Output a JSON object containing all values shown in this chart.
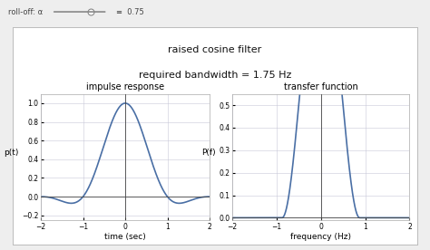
{
  "title_line1": "raised cosine filter",
  "title_line2": "required bandwidth = 1.75 Hz",
  "subplot1_title": "impulse response",
  "subplot2_title": "transfer function",
  "xlabel1": "time (sec)",
  "xlabel2": "frequency (Hz)",
  "ylabel1": "p(t)",
  "ylabel2": "P(f)",
  "alpha": 0.75,
  "T": 1.0,
  "xlim": [
    -2,
    2
  ],
  "ylim1": [
    -0.25,
    1.1
  ],
  "ylim2": [
    -0.01,
    0.55
  ],
  "line_color": "#4a6fa5",
  "line_width": 1.2,
  "bg_color": "#ffffff",
  "outer_bg": "#eeeeee",
  "panel_bg": "#ffffff",
  "grid_color": "#c8c8d8",
  "tick_fontsize": 5.5,
  "label_fontsize": 6.5,
  "title_fontsize": 7,
  "main_title_fontsize": 8,
  "roll_off_text": "roll-off: α",
  "roll_off_value": "0.75",
  "yticks1": [
    -0.2,
    0.0,
    0.2,
    0.4,
    0.6,
    0.8,
    1.0
  ],
  "yticks2": [
    0.0,
    0.1,
    0.2,
    0.3,
    0.4,
    0.5
  ],
  "xticks": [
    -2,
    -1,
    0,
    1,
    2
  ]
}
